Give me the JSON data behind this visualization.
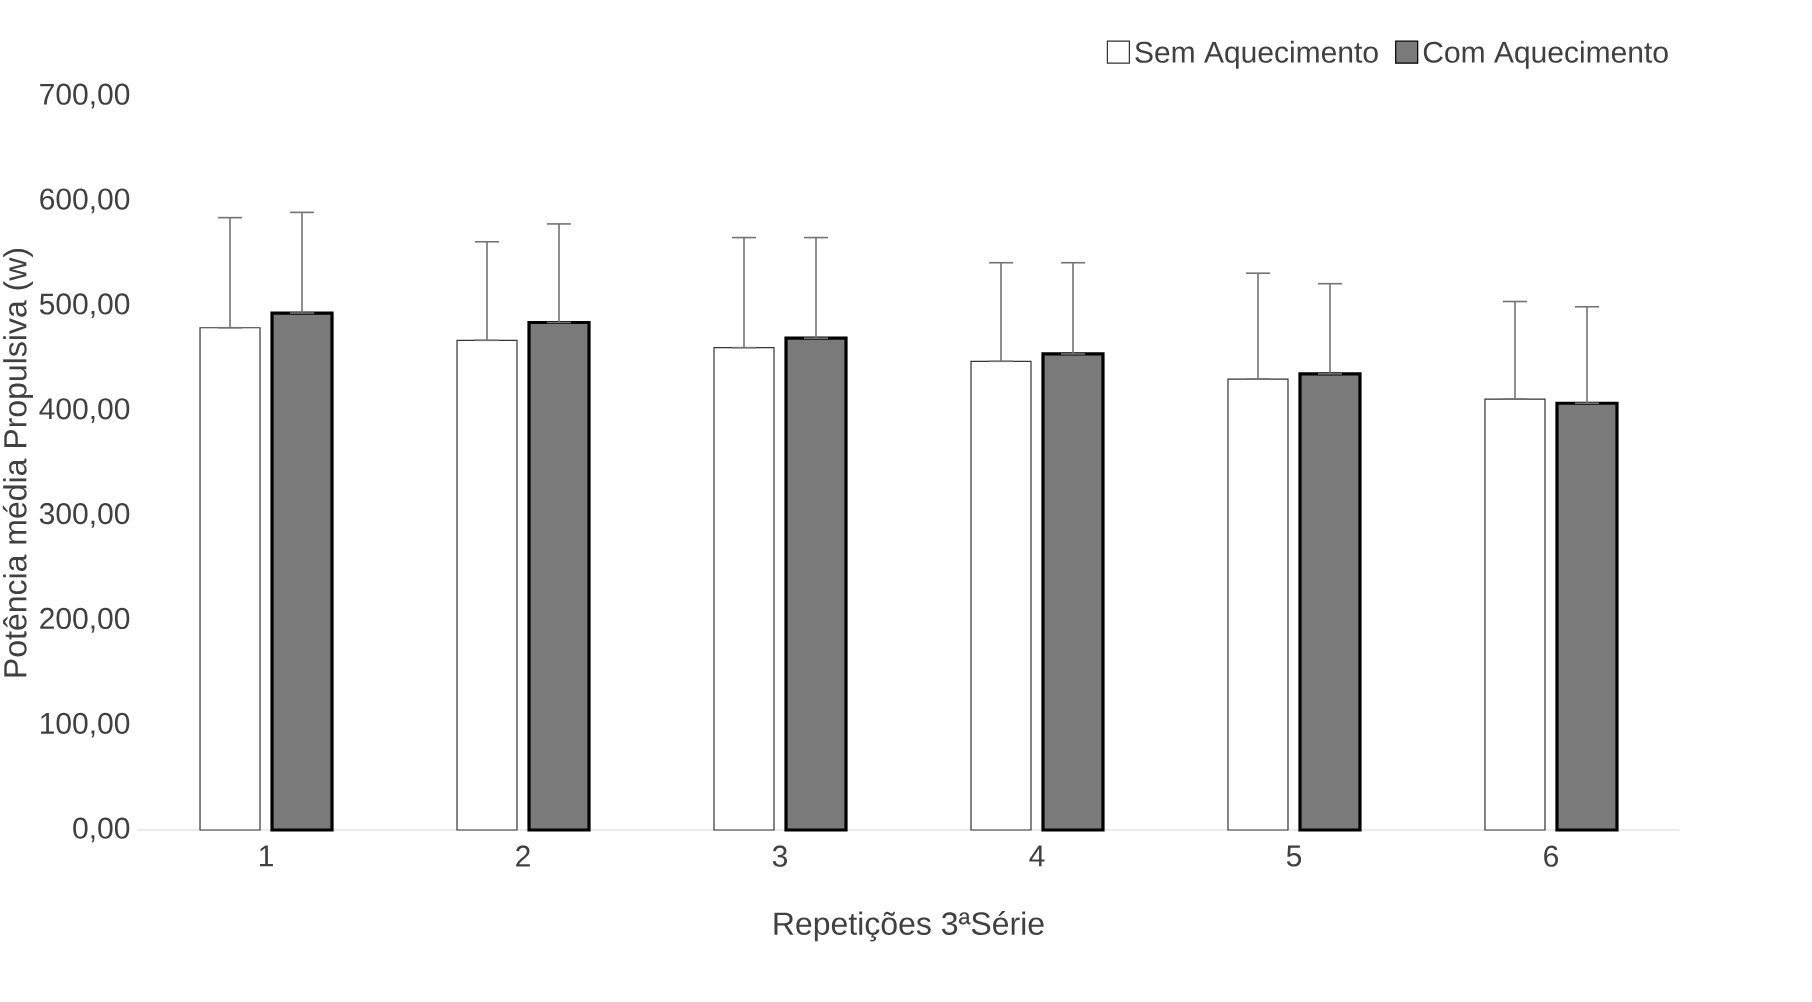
{
  "chart_data": {
    "type": "bar",
    "xlabel": "Repetições 3ªSérie",
    "ylabel": "Potência média Propulsiva (w)",
    "categories": [
      "1",
      "2",
      "3",
      "4",
      "5",
      "6"
    ],
    "series": [
      {
        "name": "Sem Aquecimento",
        "color": "#ffffff",
        "values": [
          479,
          467,
          460,
          447,
          430,
          411
        ],
        "errors": [
          [
            479,
            584
          ],
          [
            467,
            561
          ],
          [
            460,
            565
          ],
          [
            447,
            541
          ],
          [
            430,
            531
          ],
          [
            411,
            504
          ]
        ]
      },
      {
        "name": "Com Aquecimento",
        "color": "#7a7a7a",
        "values": [
          493,
          484,
          469,
          454,
          435,
          407
        ],
        "errors": [
          [
            493,
            589
          ],
          [
            484,
            578
          ],
          [
            469,
            565
          ],
          [
            454,
            541
          ],
          [
            435,
            521
          ],
          [
            407,
            499
          ]
        ]
      }
    ],
    "ylim": [
      0,
      700
    ],
    "yticks": [
      {
        "value": 0,
        "label": "0,00"
      },
      {
        "value": 100,
        "label": "100,00"
      },
      {
        "value": 200,
        "label": "200,00"
      },
      {
        "value": 300,
        "label": "300,00"
      },
      {
        "value": 400,
        "label": "400,00"
      },
      {
        "value": 500,
        "label": "500,00"
      },
      {
        "value": 600,
        "label": "600,00"
      },
      {
        "value": 700,
        "label": "700,00"
      }
    ],
    "legend": "top right"
  }
}
